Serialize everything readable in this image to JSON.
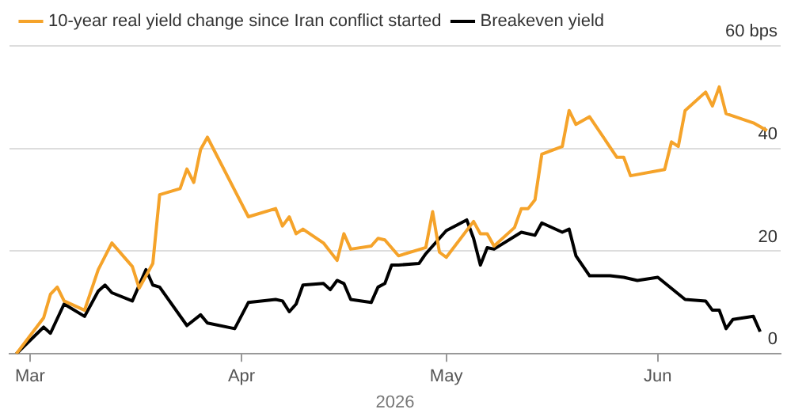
{
  "chart_data": {
    "type": "line",
    "xlabel": "2026",
    "series": [
      {
        "name": "10-year real yield change since Iran conflict started",
        "color": "#f5a32a",
        "x": [
          "2026-02-27",
          "2026-03-03",
          "2026-03-04",
          "2026-03-05",
          "2026-03-06",
          "2026-03-09",
          "2026-03-11",
          "2026-03-13",
          "2026-03-16",
          "2026-03-17",
          "2026-03-19",
          "2026-03-20",
          "2026-03-23",
          "2026-03-24",
          "2026-03-25",
          "2026-03-26",
          "2026-03-27",
          "2026-04-02",
          "2026-04-06",
          "2026-04-07",
          "2026-04-08",
          "2026-04-09",
          "2026-04-10",
          "2026-04-13",
          "2026-04-15",
          "2026-04-16",
          "2026-04-17",
          "2026-04-20",
          "2026-04-21",
          "2026-04-22",
          "2026-04-24",
          "2026-04-28",
          "2026-04-29",
          "2026-04-30",
          "2026-05-01",
          "2026-05-05",
          "2026-05-06",
          "2026-05-07",
          "2026-05-08",
          "2026-05-11",
          "2026-05-12",
          "2026-05-13",
          "2026-05-14",
          "2026-05-15",
          "2026-05-18",
          "2026-05-19",
          "2026-05-20",
          "2026-05-22",
          "2026-05-26",
          "2026-05-27",
          "2026-05-28",
          "2026-06-02",
          "2026-06-03",
          "2026-06-04",
          "2026-06-05",
          "2026-06-08",
          "2026-06-09",
          "2026-06-10",
          "2026-06-11",
          "2026-06-15",
          "2026-06-17"
        ],
        "values": [
          0,
          7,
          11.6,
          13,
          10.3,
          8.5,
          16.4,
          21.6,
          17,
          12.8,
          17.6,
          31,
          32.2,
          36,
          33.4,
          39.8,
          42.2,
          26.7,
          28.3,
          24.9,
          26.7,
          23.4,
          24.3,
          21.6,
          18.2,
          23.4,
          20.4,
          21,
          22.5,
          22.2,
          19.1,
          20.7,
          27.7,
          19.8,
          18.8,
          25.8,
          23.4,
          23.4,
          21,
          24.6,
          28.3,
          28.3,
          30,
          38.9,
          40.4,
          47.4,
          44.7,
          46.2,
          38.3,
          38.3,
          34.7,
          35.9,
          41.3,
          40.4,
          47.4,
          51,
          48.3,
          52,
          46.8,
          45,
          43.5
        ]
      },
      {
        "name": "Breakeven yield",
        "color": "#000000",
        "x": [
          "2026-02-27",
          "2026-03-03",
          "2026-03-04",
          "2026-03-06",
          "2026-03-09",
          "2026-03-11",
          "2026-03-12",
          "2026-03-13",
          "2026-03-16",
          "2026-03-18",
          "2026-03-19",
          "2026-03-20",
          "2026-03-24",
          "2026-03-26",
          "2026-03-27",
          "2026-03-31",
          "2026-04-02",
          "2026-04-06",
          "2026-04-07",
          "2026-04-08",
          "2026-04-09",
          "2026-04-10",
          "2026-04-13",
          "2026-04-14",
          "2026-04-15",
          "2026-04-16",
          "2026-04-17",
          "2026-04-20",
          "2026-04-21",
          "2026-04-22",
          "2026-04-23",
          "2026-04-24",
          "2026-04-27",
          "2026-04-28",
          "2026-05-01",
          "2026-05-04",
          "2026-05-05",
          "2026-05-06",
          "2026-05-07",
          "2026-05-08",
          "2026-05-12",
          "2026-05-14",
          "2026-05-15",
          "2026-05-18",
          "2026-05-19",
          "2026-05-20",
          "2026-05-22",
          "2026-05-25",
          "2026-05-27",
          "2026-05-29",
          "2026-06-01",
          "2026-06-05",
          "2026-06-08",
          "2026-06-09",
          "2026-06-10",
          "2026-06-11",
          "2026-06-12",
          "2026-06-15",
          "2026-06-16"
        ],
        "values": [
          0,
          5.2,
          4,
          9.7,
          7.3,
          12.2,
          13.4,
          11.9,
          10.3,
          16.4,
          13.4,
          13,
          5.5,
          7.6,
          6,
          4.9,
          10,
          10.6,
          10.3,
          8.2,
          9.7,
          13.4,
          13.7,
          12.5,
          14.3,
          13.7,
          10.6,
          10,
          13,
          13.7,
          17.3,
          17.3,
          17.6,
          19.5,
          24,
          26.1,
          22.5,
          17.3,
          20.7,
          20.4,
          23.7,
          23.1,
          25.5,
          23.7,
          24.3,
          19.1,
          15.2,
          15.2,
          14.9,
          14.3,
          14.9,
          10.6,
          10.3,
          8.5,
          8.5,
          4.9,
          6.7,
          7.3,
          4.3
        ]
      }
    ],
    "xlim": [
      "2026-02-26",
      "2026-06-19"
    ],
    "xticks": [
      {
        "value": "2026-03-01",
        "label": "Mar"
      },
      {
        "value": "2026-04-01",
        "label": "Apr"
      },
      {
        "value": "2026-05-01",
        "label": "May"
      },
      {
        "value": "2026-06-01",
        "label": "Jun"
      }
    ],
    "ylim": [
      0,
      60
    ],
    "yticks": [
      0,
      20,
      40,
      {
        "value": 60,
        "label": "60 bps"
      }
    ],
    "grid": "y",
    "legend": "top left",
    "marker": "none",
    "line_style": "solid"
  }
}
